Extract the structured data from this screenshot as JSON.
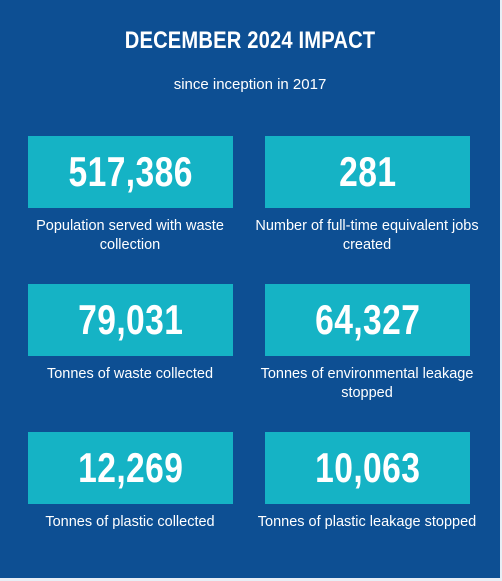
{
  "header": {
    "title": "DECEMBER 2024 IMPACT",
    "subtitle": "since inception in 2017"
  },
  "stats": [
    {
      "value": "517,386",
      "label": "Population served with waste collection"
    },
    {
      "value": "281",
      "label": "Number of full-time equivalent jobs created"
    },
    {
      "value": "79,031",
      "label": "Tonnes of waste collected"
    },
    {
      "value": "64,327",
      "label": "Tonnes of environmental leakage stopped"
    },
    {
      "value": "12,269",
      "label": "Tonnes of plastic collected"
    },
    {
      "value": "10,063",
      "label": "Tonnes of plastic leakage stopped"
    }
  ],
  "colors": {
    "background": "#0d4f93",
    "stat_box": "#15b3c5",
    "text": "#ffffff"
  }
}
